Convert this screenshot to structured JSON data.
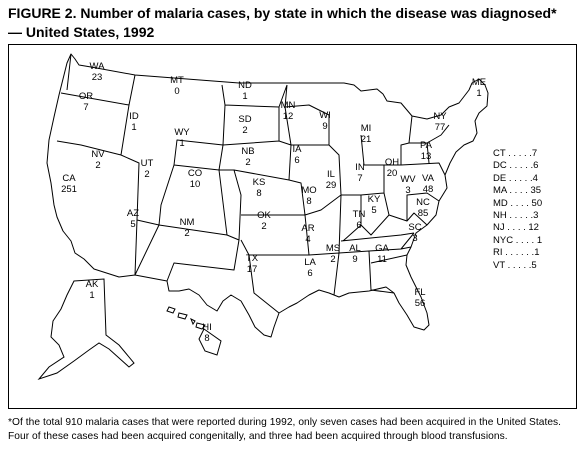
{
  "figure": {
    "title_line1": "FIGURE 2. Number of malaria cases, by state in which the disease was diagnosed*",
    "title_line2": "— United States, 1992"
  },
  "states": [
    {
      "id": "wa",
      "abbr": "WA",
      "value": "23"
    },
    {
      "id": "or",
      "abbr": "OR",
      "value": "7"
    },
    {
      "id": "id",
      "abbr": "ID",
      "value": "1"
    },
    {
      "id": "mt",
      "abbr": "MT",
      "value": "0"
    },
    {
      "id": "nd",
      "abbr": "ND",
      "value": "1"
    },
    {
      "id": "mn",
      "abbr": "MN",
      "value": "12"
    },
    {
      "id": "wi",
      "abbr": "WI",
      "value": "9"
    },
    {
      "id": "mi",
      "abbr": "MI",
      "value": "21"
    },
    {
      "id": "me",
      "abbr": "ME",
      "value": "1"
    },
    {
      "id": "ny",
      "abbr": "NY",
      "value": "77"
    },
    {
      "id": "pa",
      "abbr": "PA",
      "value": "13"
    },
    {
      "id": "sd",
      "abbr": "SD",
      "value": "2"
    },
    {
      "id": "wy",
      "abbr": "WY",
      "value": "1"
    },
    {
      "id": "nv",
      "abbr": "NV",
      "value": "2"
    },
    {
      "id": "ca",
      "abbr": "CA",
      "value": "251"
    },
    {
      "id": "ut",
      "abbr": "UT",
      "value": "2"
    },
    {
      "id": "co",
      "abbr": "CO",
      "value": "10"
    },
    {
      "id": "nb",
      "abbr": "NB",
      "value": "2"
    },
    {
      "id": "ia",
      "abbr": "IA",
      "value": "6"
    },
    {
      "id": "il",
      "abbr": "IL",
      "value": "29"
    },
    {
      "id": "in",
      "abbr": "IN",
      "value": "7"
    },
    {
      "id": "oh",
      "abbr": "OH",
      "value": "20"
    },
    {
      "id": "wv",
      "abbr": "WV",
      "value": "3"
    },
    {
      "id": "va",
      "abbr": "VA",
      "value": "48"
    },
    {
      "id": "ks",
      "abbr": "KS",
      "value": "8"
    },
    {
      "id": "mo",
      "abbr": "MO",
      "value": "8"
    },
    {
      "id": "ky",
      "abbr": "KY",
      "value": "5"
    },
    {
      "id": "nc",
      "abbr": "NC",
      "value": "85"
    },
    {
      "id": "az",
      "abbr": "AZ",
      "value": "5"
    },
    {
      "id": "nm",
      "abbr": "NM",
      "value": "2"
    },
    {
      "id": "ok",
      "abbr": "OK",
      "value": "2"
    },
    {
      "id": "ar",
      "abbr": "AR",
      "value": "4"
    },
    {
      "id": "tn",
      "abbr": "TN",
      "value": "6"
    },
    {
      "id": "sc",
      "abbr": "SC",
      "value": "3"
    },
    {
      "id": "ms",
      "abbr": "MS",
      "value": "2"
    },
    {
      "id": "al",
      "abbr": "AL",
      "value": "9"
    },
    {
      "id": "ga",
      "abbr": "GA",
      "value": "11"
    },
    {
      "id": "tx",
      "abbr": "TX",
      "value": "17"
    },
    {
      "id": "la",
      "abbr": "LA",
      "value": "6"
    },
    {
      "id": "fl",
      "abbr": "FL",
      "value": "56"
    },
    {
      "id": "ak",
      "abbr": "AK",
      "value": "1"
    },
    {
      "id": "hi",
      "abbr": "HI",
      "value": "8"
    }
  ],
  "side_list": [
    {
      "abbr": "CT",
      "dots": ". . . . .",
      "value": "7"
    },
    {
      "abbr": "DC",
      "dots": ". . . . .",
      "value": "6"
    },
    {
      "abbr": "DE",
      "dots": ". . . . .",
      "value": "4"
    },
    {
      "abbr": "MA",
      "dots": ". . . . ",
      "value": "35"
    },
    {
      "abbr": "MD",
      "dots": ". . . . ",
      "value": "50"
    },
    {
      "abbr": "NH",
      "dots": ". . . . .",
      "value": "3"
    },
    {
      "abbr": "NJ",
      "dots": ". . . . ",
      "value": "12"
    },
    {
      "abbr": "NYC",
      "dots": ". . . . ",
      "value": "1"
    },
    {
      "abbr": "RI",
      "dots": ". . . . . .",
      "value": "1"
    },
    {
      "abbr": "VT",
      "dots": ". . . . .",
      "value": "5"
    }
  ],
  "footnote": "*Of the total 910 malaria cases that were reported during 1992, only seven cases had been acquired in the United States. Four of these cases had been acquired congenitally, and three had been acquired through blood transfusions."
}
